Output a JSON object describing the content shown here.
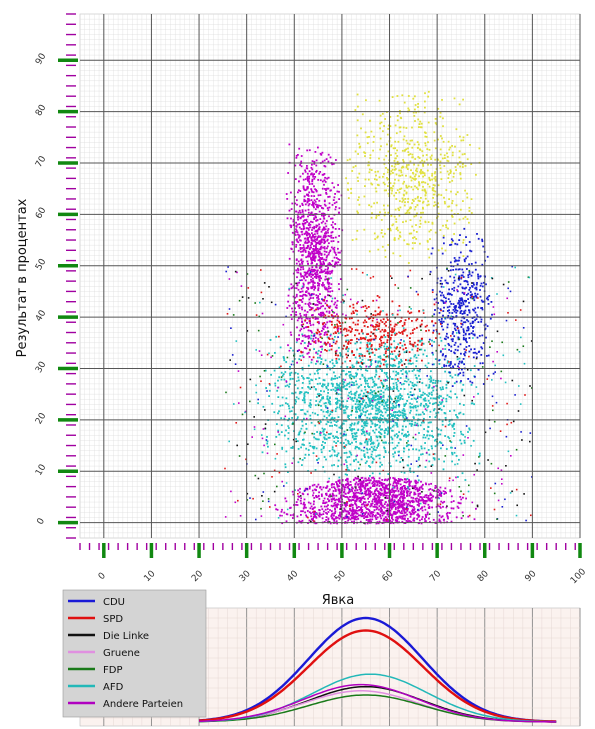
{
  "chart_data": [
    {
      "type": "scatter",
      "xlabel": "Явка",
      "ylabel": "Результат в процентах",
      "xlim": [
        -5,
        100
      ],
      "ylim": [
        -3,
        99
      ],
      "xticks": [
        0,
        10,
        20,
        30,
        40,
        50,
        60,
        70,
        80,
        90,
        100
      ],
      "yticks": [
        0,
        10,
        20,
        30,
        40,
        50,
        60,
        70,
        80,
        90
      ],
      "grid": true,
      "clusters": [
        {
          "name": "Andere Parteien",
          "color": "#c000c8",
          "turnout_range": [
            33,
            80
          ],
          "result_range": [
            0,
            9
          ]
        },
        {
          "name": "AFD",
          "color": "#22c0c0",
          "turnout_range": [
            32,
            80
          ],
          "result_range": [
            8,
            38
          ]
        },
        {
          "name": "Andere Parteien",
          "color": "#c000c8",
          "turnout_range": [
            38,
            50
          ],
          "result_range": [
            30,
            75
          ]
        },
        {
          "name": "SPD",
          "color": "#e01818",
          "turnout_range": [
            40,
            72
          ],
          "result_range": [
            30,
            45
          ]
        },
        {
          "name": "CDU",
          "color": "#1a20d0",
          "turnout_range": [
            68,
            82
          ],
          "result_range": [
            25,
            58
          ]
        },
        {
          "name": "Gruene",
          "color": "#e0e040",
          "turnout_range": [
            50,
            80
          ],
          "result_range": [
            50,
            85
          ]
        }
      ]
    },
    {
      "type": "line",
      "xlim": [
        -5,
        100
      ],
      "ylim": [
        0,
        100
      ],
      "legend_position": "top-left",
      "series": [
        {
          "name": "CDU",
          "color": "#1a1ad6",
          "peak_x": 55,
          "peak_y": 100,
          "spread": 12
        },
        {
          "name": "SPD",
          "color": "#e01010",
          "peak_x": 55,
          "peak_y": 88,
          "spread": 12
        },
        {
          "name": "Die Linke",
          "color": "#111111",
          "peak_x": 55,
          "peak_y": 34,
          "spread": 12
        },
        {
          "name": "Gruene",
          "color": "#e090e0",
          "peak_x": 54,
          "peak_y": 30,
          "spread": 12
        },
        {
          "name": "FDP",
          "color": "#1a7a1a",
          "peak_x": 55,
          "peak_y": 26,
          "spread": 12
        },
        {
          "name": "AFD",
          "color": "#22b8b8",
          "peak_x": 56,
          "peak_y": 46,
          "spread": 12
        },
        {
          "name": "Andere Parteien",
          "color": "#b000c0",
          "peak_x": 54,
          "peak_y": 36,
          "spread": 12
        }
      ]
    }
  ]
}
